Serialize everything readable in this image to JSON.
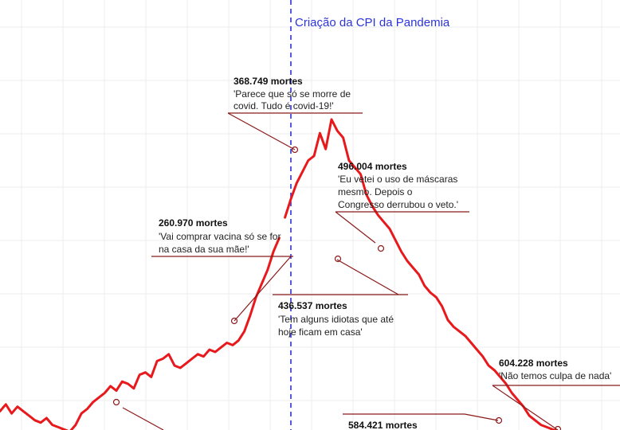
{
  "chart_data": {
    "type": "line",
    "title": "",
    "xlabel": "",
    "ylabel": "",
    "grid": true,
    "series": [
      {
        "color": "#e8191c",
        "y": [
          0.1,
          0.13,
          0.09,
          0.12,
          0.1,
          0.08,
          0.06,
          0.05,
          0.07,
          0.04,
          0.03,
          0.02,
          0.01,
          0.04,
          0.09,
          0.11,
          0.14,
          0.16,
          0.18,
          0.21,
          0.19,
          0.23,
          0.22,
          0.2,
          0.26,
          0.27,
          0.25,
          0.32,
          0.33,
          0.35,
          0.3,
          0.29,
          0.31,
          0.33,
          0.35,
          0.34,
          0.37,
          0.36,
          0.38,
          0.4,
          0.39,
          0.41,
          0.45,
          0.52,
          0.6,
          0.66,
          0.72,
          0.8,
          0.86,
          0.95,
          1.03,
          1.1,
          1.15,
          1.2,
          1.22,
          1.32,
          1.25,
          1.38,
          1.33,
          1.3,
          1.2,
          1.17,
          1.14,
          1.05,
          1.0,
          0.96,
          0.93,
          0.9,
          0.85,
          0.8,
          0.76,
          0.73,
          0.7,
          0.65,
          0.62,
          0.6,
          0.56,
          0.5,
          0.47,
          0.45,
          0.43,
          0.4,
          0.37,
          0.34,
          0.3,
          0.28,
          0.25,
          0.22,
          0.18,
          0.15,
          0.12,
          0.08,
          0.06,
          0.04,
          0.03,
          0.02,
          0.01,
          0.005
        ],
        "gap_after_index": 48
      }
    ],
    "event_line": {
      "label": "Criação da CPI da Pandemia",
      "color": "#2c34d8"
    },
    "annotations": [
      {
        "title": "368.749 mortes",
        "lines": [
          "'Parece que só se morre de",
          "covid. Tudo é covid-19!'"
        ]
      },
      {
        "title": "496.004 mortes",
        "lines": [
          "'Eu vetei o uso de máscaras",
          "mesmo. Depois o",
          "Congresso derrubou o veto.'"
        ]
      },
      {
        "title": "260.970 mortes",
        "lines": [
          "'Vai comprar vacina só se for",
          "na casa da sua mãe!'"
        ]
      },
      {
        "title": "436.537 mortes",
        "lines": [
          "'Tem alguns idiotas que até",
          "hoje ficam em casa'"
        ]
      },
      {
        "title": "604.228 mortes",
        "lines": [
          "'Não temos culpa de nada'"
        ]
      },
      {
        "title": "584.421 mortes",
        "lines": []
      }
    ]
  }
}
